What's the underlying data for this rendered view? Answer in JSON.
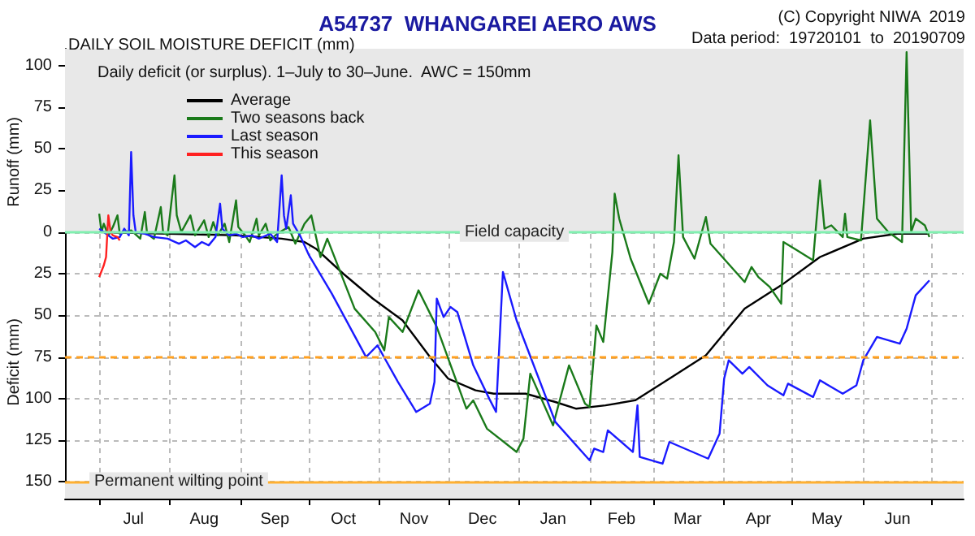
{
  "chart_data": {
    "type": "line",
    "title": "A54737  WHANGAREI AERO AWS",
    "subtitle": "DAILY SOIL MOISTURE DEFICIT (mm)",
    "ylabel": "Deficit (mm)",
    "annotations": [
      "(C) Copyright NIWA  2019",
      "Data period:  19720101  to  20190709",
      "Daily deficit (or surplus). 1–July to 30–June.  AWC = 150mm",
      "Runoff (mm)"
    ],
    "xlim": [
      "2018-06-16",
      "2019-07-15"
    ],
    "xticks": [
      {
        "value": "2018-07-01",
        "label": null
      },
      {
        "value": "2018-07-16",
        "label": "Jul"
      },
      {
        "value": "2018-08-01",
        "label": null
      },
      {
        "value": "2018-08-16",
        "label": "Aug"
      },
      {
        "value": "2018-09-01",
        "label": null
      },
      {
        "value": "2018-09-16",
        "label": "Sep"
      },
      {
        "value": "2018-10-01",
        "label": null
      },
      {
        "value": "2018-10-16",
        "label": "Oct"
      },
      {
        "value": "2018-11-01",
        "label": null
      },
      {
        "value": "2018-11-16",
        "label": "Nov"
      },
      {
        "value": "2018-12-01",
        "label": null
      },
      {
        "value": "2018-12-16",
        "label": "Dec"
      },
      {
        "value": "2019-01-01",
        "label": null
      },
      {
        "value": "2019-01-16",
        "label": "Jan"
      },
      {
        "value": "2019-02-01",
        "label": null
      },
      {
        "value": "2019-02-15",
        "label": "Feb"
      },
      {
        "value": "2019-03-01",
        "label": null
      },
      {
        "value": "2019-03-16",
        "label": "Mar"
      },
      {
        "value": "2019-04-01",
        "label": null
      },
      {
        "value": "2019-04-16",
        "label": "Apr"
      },
      {
        "value": "2019-05-01",
        "label": null
      },
      {
        "value": "2019-05-16",
        "label": "May"
      },
      {
        "value": "2019-06-01",
        "label": null
      },
      {
        "value": "2019-06-16",
        "label": "Jun"
      },
      {
        "value": "2019-07-01",
        "label": null
      }
    ],
    "ylim": [
      -160,
      110
    ],
    "yticks": [
      100,
      75,
      50,
      25,
      0,
      {
        "value": -25,
        "label": "25"
      },
      {
        "value": -50,
        "label": "50"
      },
      {
        "value": -75,
        "label": "75"
      },
      {
        "value": -100,
        "label": "100"
      },
      {
        "value": -125,
        "label": "125"
      },
      {
        "value": -150,
        "label": "150"
      }
    ],
    "grid": true,
    "legend": "top left",
    "bands": [
      {
        "axis": "y",
        "from": 0,
        "to": 110,
        "label": null,
        "color": "#e8e8e8"
      },
      {
        "axis": "y",
        "from": -160,
        "to": -150,
        "label": null,
        "color": "#e8e8e8"
      }
    ],
    "ref_lines": [
      {
        "axis": "y",
        "value": 0,
        "label": "Field capacity",
        "color": "#80f0b0",
        "line_style": "solid"
      },
      {
        "axis": "y",
        "value": -75,
        "label": null,
        "color": "#ffa020",
        "line_style": "dashed"
      },
      {
        "axis": "y",
        "value": -150,
        "label": "Permanent wilting point",
        "color": "#ffb030",
        "line_style": "solid"
      }
    ],
    "series": [
      {
        "name": "Average",
        "color": "#000000",
        "x": [
          "2018-07-01",
          "2018-07-31",
          "2018-08-30",
          "2018-09-19",
          "2018-09-29",
          "2018-10-04",
          "2018-10-16",
          "2018-10-29",
          "2018-11-11",
          "2018-11-23",
          "2018-12-01",
          "2018-12-13",
          "2018-12-21",
          "2019-01-04",
          "2019-01-17",
          "2019-01-26",
          "2019-02-08",
          "2019-02-21",
          "2019-03-08",
          "2019-03-24",
          "2019-04-10",
          "2019-04-26",
          "2019-05-13",
          "2019-06-01",
          "2019-06-16",
          "2019-06-30"
        ],
        "values": [
          0,
          -1,
          -2,
          -4,
          -6,
          -10,
          -25,
          -40,
          -53,
          -75,
          -88,
          -95,
          -97,
          -97,
          -102,
          -106,
          -104,
          -101,
          -88,
          -74,
          -46,
          -32,
          -15,
          -4,
          -1,
          -1
        ]
      },
      {
        "name": "Two seasons back",
        "color": "#1a7a1a",
        "x": [
          "2018-07-01",
          "2018-07-02",
          "2018-07-03",
          "2018-07-05",
          "2018-07-07",
          "2018-07-09",
          "2018-07-10",
          "2018-07-15",
          "2018-07-19",
          "2018-07-21",
          "2018-07-22",
          "2018-07-25",
          "2018-07-28",
          "2018-07-29",
          "2018-07-31",
          "2018-08-03",
          "2018-08-04",
          "2018-08-06",
          "2018-08-10",
          "2018-08-12",
          "2018-08-16",
          "2018-08-18",
          "2018-08-20",
          "2018-08-22",
          "2018-08-25",
          "2018-08-27",
          "2018-08-30",
          "2018-08-31",
          "2018-09-03",
          "2018-09-05",
          "2018-09-08",
          "2018-09-09",
          "2018-09-12",
          "2018-09-14",
          "2018-09-17",
          "2018-09-22",
          "2018-09-25",
          "2018-09-29",
          "2018-10-02",
          "2018-10-06",
          "2018-10-09",
          "2018-10-21",
          "2018-10-30",
          "2018-11-03",
          "2018-11-05",
          "2018-11-11",
          "2018-11-18",
          "2018-11-26",
          "2018-12-09",
          "2018-12-12",
          "2018-12-18",
          "2018-12-31",
          "2019-01-03",
          "2019-01-06",
          "2019-01-16",
          "2019-01-23",
          "2019-01-30",
          "2019-02-01",
          "2019-02-04",
          "2019-02-07",
          "2019-02-11",
          "2019-02-12",
          "2019-02-14",
          "2019-02-19",
          "2019-02-27",
          "2019-03-04",
          "2019-03-07",
          "2019-03-10",
          "2019-03-12",
          "2019-03-14",
          "2019-03-19",
          "2019-03-24",
          "2019-03-26",
          "2019-04-10",
          "2019-04-13",
          "2019-04-16",
          "2019-04-21",
          "2019-04-26",
          "2019-04-27",
          "2019-05-03",
          "2019-05-10",
          "2019-05-13",
          "2019-05-15",
          "2019-05-18",
          "2019-05-23",
          "2019-05-24",
          "2019-05-25",
          "2019-05-31",
          "2019-06-04",
          "2019-06-07",
          "2019-06-12",
          "2019-06-18",
          "2019-06-20",
          "2019-06-22",
          "2019-06-24",
          "2019-06-28",
          "2019-06-30"
        ],
        "values": [
          11,
          0,
          5,
          -2,
          3,
          10,
          -1,
          1,
          -4,
          12,
          -1,
          -4,
          15,
          0,
          -2,
          34,
          10,
          0,
          10,
          -2,
          7,
          -3,
          6,
          -2,
          5,
          -6,
          19,
          3,
          -2,
          -6,
          8,
          -2,
          5,
          -5,
          -1,
          3,
          -7,
          5,
          10,
          -15,
          -4,
          -46,
          -60,
          -71,
          -51,
          -60,
          -35,
          -57,
          -106,
          -101,
          -118,
          -132,
          -124,
          -85,
          -116,
          -80,
          -103,
          -105,
          -56,
          -66,
          -12,
          23,
          8,
          -16,
          -43,
          -25,
          -28,
          -6,
          46,
          -3,
          -16,
          9,
          -7,
          -30,
          -21,
          -27,
          -33,
          -43,
          -6,
          -11,
          -17,
          31,
          2,
          4,
          -3,
          11,
          -3,
          -5,
          67,
          8,
          0,
          -6,
          108,
          0,
          8,
          4,
          -3
        ]
      },
      {
        "name": "Last season",
        "color": "#1a1aff",
        "x": [
          "2018-07-01",
          "2018-07-04",
          "2018-07-07",
          "2018-07-10",
          "2018-07-12",
          "2018-07-14",
          "2018-07-15",
          "2018-07-16",
          "2018-07-17",
          "2018-07-21",
          "2018-07-25",
          "2018-07-31",
          "2018-08-05",
          "2018-08-08",
          "2018-08-12",
          "2018-08-15",
          "2018-08-18",
          "2018-08-21",
          "2018-08-23",
          "2018-08-24",
          "2018-08-27",
          "2018-08-30",
          "2018-09-02",
          "2018-09-06",
          "2018-09-09",
          "2018-09-14",
          "2018-09-17",
          "2018-09-19",
          "2018-09-20",
          "2018-09-21",
          "2018-09-23",
          "2018-09-24",
          "2018-09-27",
          "2018-10-01",
          "2018-10-11",
          "2018-10-26",
          "2018-10-31",
          "2018-11-09",
          "2018-11-17",
          "2018-11-23",
          "2018-11-25",
          "2018-11-26",
          "2018-11-29",
          "2018-12-02",
          "2018-12-05",
          "2018-12-12",
          "2018-12-19",
          "2018-12-22",
          "2018-12-25",
          "2018-12-31",
          "2019-01-17",
          "2019-02-01",
          "2019-02-03",
          "2019-02-07",
          "2019-02-09",
          "2019-02-20",
          "2019-02-22",
          "2019-02-23",
          "2019-03-05",
          "2019-03-08",
          "2019-03-25",
          "2019-03-30",
          "2019-04-01",
          "2019-04-03",
          "2019-04-09",
          "2019-04-12",
          "2019-04-20",
          "2019-04-27",
          "2019-04-29",
          "2019-05-10",
          "2019-05-13",
          "2019-05-23",
          "2019-05-29",
          "2019-06-01",
          "2019-06-07",
          "2019-06-17",
          "2019-06-20",
          "2019-06-24",
          "2019-06-30"
        ],
        "values": [
          2,
          -1,
          -4,
          -3,
          2,
          -2,
          48,
          10,
          0,
          -1,
          -3,
          -4,
          -7,
          -5,
          -9,
          -6,
          -8,
          -3,
          17,
          2,
          -2,
          -1,
          -3,
          -2,
          -4,
          -1,
          -6,
          34,
          10,
          2,
          22,
          5,
          -2,
          -14,
          -37,
          -75,
          -68,
          -90,
          -108,
          -103,
          -90,
          -40,
          -51,
          -45,
          -48,
          -80,
          -100,
          -108,
          -24,
          -53,
          -114,
          -137,
          -130,
          -132,
          -119,
          -132,
          -104,
          -135,
          -139,
          -126,
          -136,
          -121,
          -88,
          -77,
          -85,
          -81,
          -92,
          -98,
          -91,
          -99,
          -89,
          -97,
          -92,
          -77,
          -63,
          -67,
          -58,
          -38,
          -29
        ]
      },
      {
        "name": "This season",
        "color": "#ff2020",
        "x": [
          "2018-07-01",
          "2018-07-03",
          "2018-07-04",
          "2018-07-05",
          "2018-07-06",
          "2018-07-07",
          "2018-07-09",
          "2018-07-10"
        ],
        "values": [
          -27,
          -20,
          -15,
          10,
          0,
          -2,
          -3,
          -5
        ]
      }
    ]
  }
}
